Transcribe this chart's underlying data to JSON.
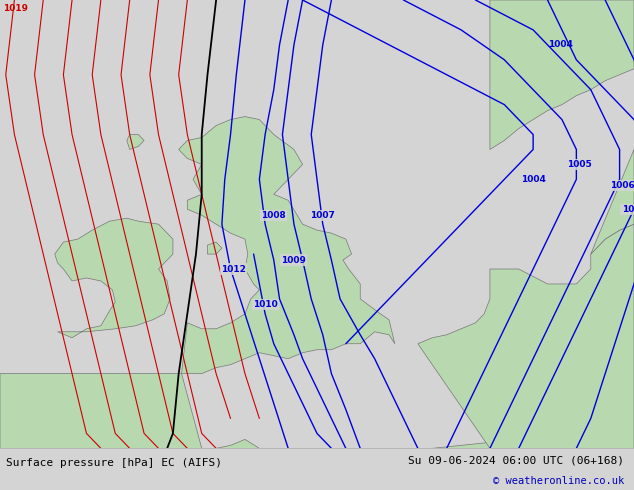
{
  "title_left": "Surface pressure [hPa] EC (AIFS)",
  "title_right": "Su 09-06-2024 06:00 UTC (06+168)",
  "copyright": "© weatheronline.co.uk",
  "bg_color": "#d4d4d4",
  "land_color": "#b8d8b0",
  "sea_color": "#d4d4d4",
  "contour_blue_color": "#0000dd",
  "contour_red_color": "#cc0000",
  "contour_black_color": "#000000",
  "bottom_bar_color": "#e0e0e0",
  "bottom_text_color": "#000000",
  "fig_width": 6.34,
  "fig_height": 4.9,
  "lon_min": -12.0,
  "lon_max": 10.0,
  "lat_min": 47.5,
  "lat_max": 62.5
}
